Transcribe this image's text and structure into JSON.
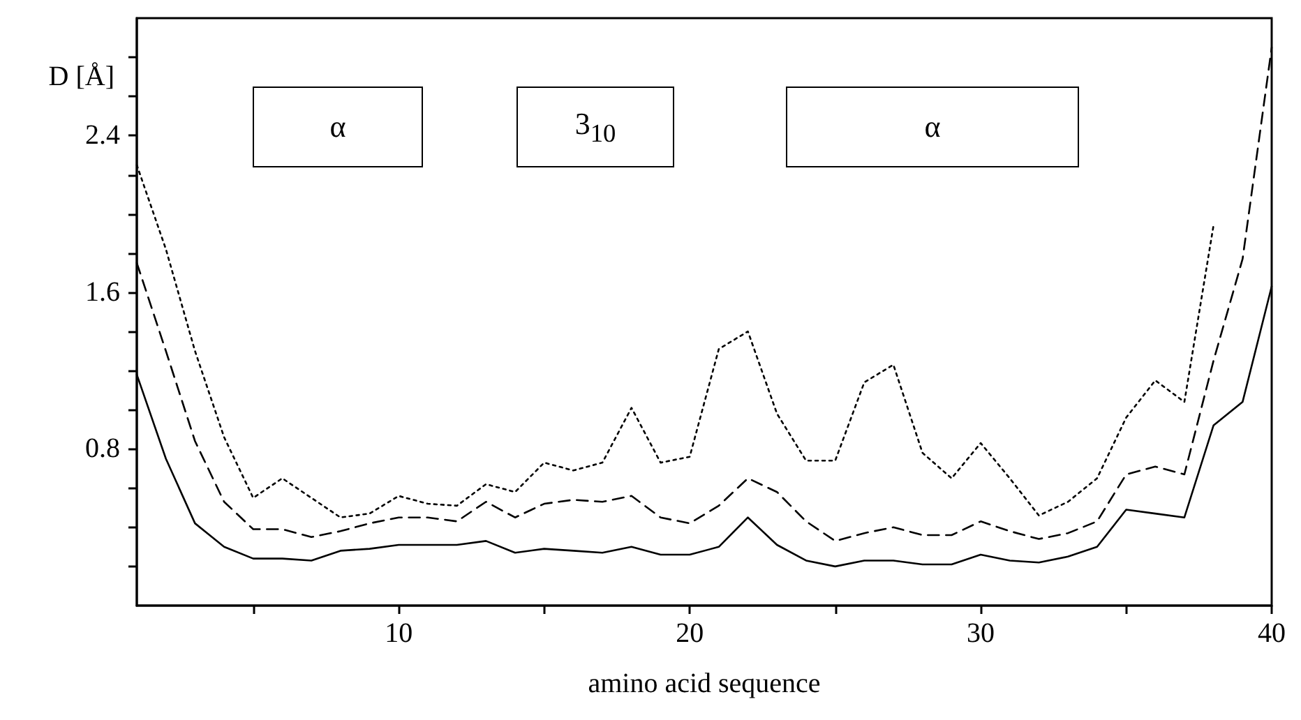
{
  "chart_data": {
    "type": "line",
    "xlabel": "amino acid sequence",
    "ylabel": "D [Å]",
    "x": [
      1,
      2,
      3,
      4,
      5,
      6,
      7,
      8,
      9,
      10,
      11,
      12,
      13,
      14,
      15,
      16,
      17,
      18,
      19,
      20,
      21,
      22,
      23,
      24,
      25,
      26,
      27,
      28,
      29,
      30,
      31,
      32,
      33,
      34,
      35,
      36,
      37,
      38,
      39,
      40
    ],
    "series": [
      {
        "color": "#000000",
        "line_style": "solid",
        "values": [
          1.18,
          0.75,
          0.42,
          0.3,
          0.24,
          0.24,
          0.23,
          0.28,
          0.29,
          0.31,
          0.31,
          0.31,
          0.33,
          0.27,
          0.29,
          0.28,
          0.27,
          0.3,
          0.26,
          0.26,
          0.3,
          0.45,
          0.31,
          0.23,
          0.2,
          0.23,
          0.23,
          0.21,
          0.21,
          0.26,
          0.23,
          0.22,
          0.25,
          0.3,
          0.49,
          0.47,
          0.45,
          0.92,
          1.04,
          1.63
        ]
      },
      {
        "color": "#000000",
        "line_style": "dashed",
        "values": [
          1.75,
          1.3,
          0.84,
          0.53,
          0.39,
          0.39,
          0.35,
          0.38,
          0.42,
          0.45,
          0.45,
          0.43,
          0.53,
          0.45,
          0.52,
          0.54,
          0.53,
          0.56,
          0.45,
          0.42,
          0.51,
          0.65,
          0.58,
          0.43,
          0.33,
          0.37,
          0.4,
          0.36,
          0.36,
          0.43,
          0.38,
          0.34,
          0.37,
          0.43,
          0.67,
          0.71,
          0.67,
          1.25,
          1.77,
          2.85
        ]
      },
      {
        "color": "#000000",
        "line_style": "dotted",
        "values": [
          2.25,
          1.82,
          1.3,
          0.86,
          0.55,
          0.65,
          0.55,
          0.45,
          0.47,
          0.56,
          0.52,
          0.51,
          0.62,
          0.58,
          0.73,
          0.69,
          0.73,
          1.01,
          0.73,
          0.76,
          1.31,
          1.4,
          0.98,
          0.74,
          0.74,
          1.14,
          1.23,
          0.78,
          0.65,
          0.83,
          0.65,
          0.46,
          0.53,
          0.65,
          0.96,
          1.15,
          1.04,
          1.94,
          null,
          null
        ]
      }
    ],
    "xlim": [
      1,
      40
    ],
    "xticks": [
      {
        "value": 5,
        "label": null
      },
      10,
      {
        "value": 15,
        "label": null
      },
      20,
      {
        "value": 25,
        "label": null
      },
      30,
      {
        "value": 35,
        "label": null
      },
      40
    ],
    "ylim": [
      0,
      3.0
    ],
    "yticks": [
      {
        "value": 0.2,
        "label": null
      },
      {
        "value": 0.4,
        "label": null
      },
      {
        "value": 0.6,
        "label": null
      },
      0.8,
      {
        "value": 1.0,
        "label": null
      },
      {
        "value": 1.2,
        "label": null
      },
      {
        "value": 1.4,
        "label": null
      },
      1.6,
      {
        "value": 1.8,
        "label": null
      },
      {
        "value": 2.0,
        "label": null
      },
      {
        "value": 2.2,
        "label": null
      },
      2.4,
      {
        "value": 2.6,
        "label": null
      },
      {
        "value": 2.8,
        "label": null
      }
    ],
    "annotations": [
      "α",
      "3$_{10}$",
      "α"
    ],
    "grid": false,
    "marker": "none"
  }
}
